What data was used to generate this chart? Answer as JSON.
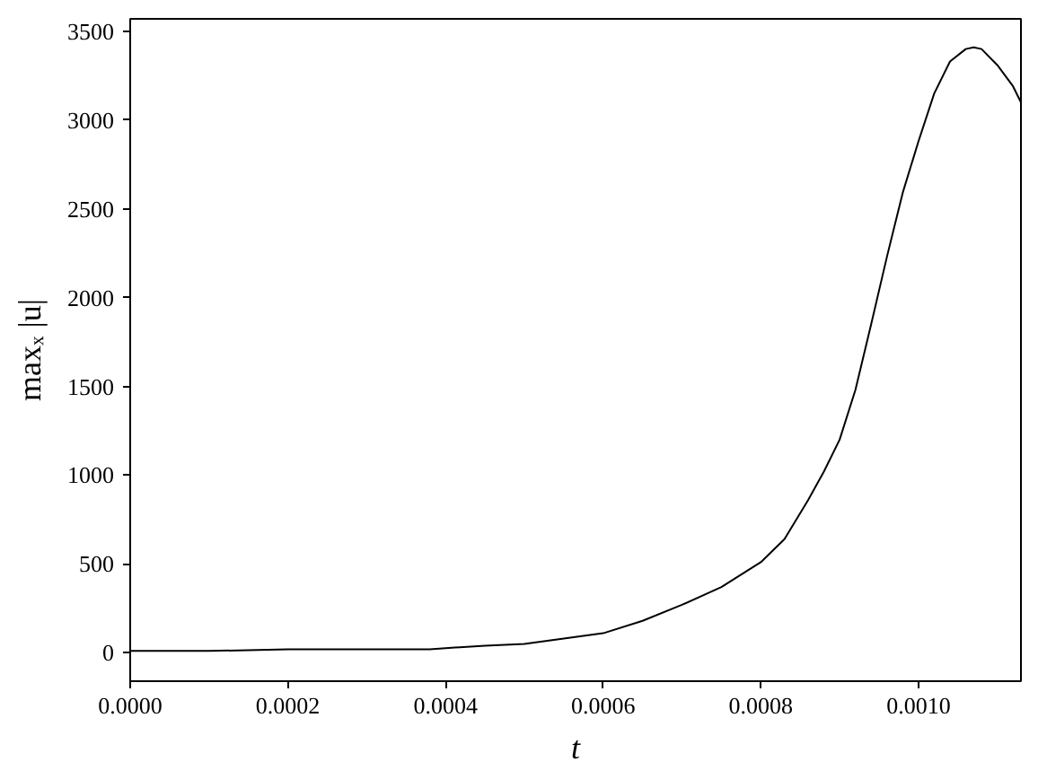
{
  "chart_data": {
    "type": "line",
    "xlabel": "t",
    "ylabel": "maxₓ |u|",
    "x": [
      0,
      0.0001,
      0.0002,
      0.0003,
      0.00038,
      0.00045,
      0.0005,
      0.00055,
      0.0006,
      0.00065,
      0.0007,
      0.00075,
      0.0008,
      0.00083,
      0.00086,
      0.00088,
      0.0009,
      0.00092,
      0.00094,
      0.00096,
      0.00098,
      0.001,
      0.00102,
      0.00104,
      0.00106,
      0.00107,
      0.00108,
      0.0011,
      0.00112,
      0.00113
    ],
    "series": [
      {
        "color": "#000000",
        "values": [
          10,
          10,
          20,
          20,
          20,
          40,
          50,
          80,
          110,
          180,
          270,
          370,
          510,
          640,
          860,
          1020,
          1200,
          1480,
          1850,
          2230,
          2590,
          2880,
          3150,
          3330,
          3400,
          3410,
          3400,
          3310,
          3190,
          3100
        ]
      }
    ],
    "xlim": [
      0,
      0.00113
    ],
    "ylim": [
      -160,
      3570
    ],
    "xticks": [
      {
        "value": 0,
        "label": "0.0000"
      },
      0.0002,
      0.0004,
      0.0006,
      0.0008,
      {
        "value": 0.001,
        "label": "0.0010"
      }
    ],
    "yticks": [
      0,
      500,
      1000,
      1500,
      2000,
      2500,
      3000,
      3500
    ],
    "grid": false,
    "line_style": "solid"
  }
}
